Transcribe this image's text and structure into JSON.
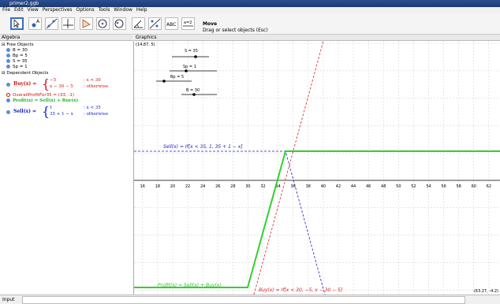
{
  "window": {
    "title": "primer2.ggb"
  },
  "menu": [
    "File",
    "Edit",
    "View",
    "Perspectives",
    "Options",
    "Tools",
    "Window",
    "Help"
  ],
  "toolbar": {
    "text_tool": "ABC",
    "slider_tool": "a=2",
    "tool_name": "Move",
    "tool_help": "Drag or select objects (Esc)"
  },
  "algebra": {
    "title": "Algebra",
    "free_header": "Free Objects",
    "free": [
      "B = 30",
      "Bp = 5",
      "S = 35",
      "Sp = 1"
    ],
    "dependent_header": "Dependent Objects",
    "buy": {
      "name": "Buy(x) =",
      "cases": [
        [
          "−5",
          ": x < 30"
        ],
        [
          "x − 30 − 5",
          ": otherwise"
        ]
      ]
    },
    "overall": "OverallProfitFor35 = (33, -1)",
    "profit": "Profit(x) = Sell(x) + Buy(x)",
    "sell": {
      "name": "Sell(x) =",
      "cases": [
        [
          "1",
          ": x < 35"
        ],
        [
          "35 + 1 − x",
          ": otherwise"
        ]
      ]
    }
  },
  "graphics": {
    "title": "Graphics",
    "corner_top_left": "(14.87, 5)",
    "corner_bottom_right": "(63.27, -4.2)",
    "sliders": [
      "S = 35",
      "Sp = 1",
      "Bp = 5",
      "B = 30"
    ],
    "x_labels": [
      "16",
      "18",
      "20",
      "22",
      "24",
      "26",
      "28",
      "30",
      "32",
      "34",
      "36",
      "38",
      "40",
      "42",
      "44",
      "46",
      "48",
      "50",
      "52",
      "54",
      "56",
      "58",
      "60",
      "62"
    ],
    "sell_label": "Sell(x) = If[x < 35, 1, 35 + 1 − x]",
    "profit_label": "Profit(x) = Sell(x) + Buy(x)",
    "buy_label": "Buy(x) = If[x < 30, −5, x − 30 − 5]"
  },
  "input": {
    "label": "Input"
  }
}
